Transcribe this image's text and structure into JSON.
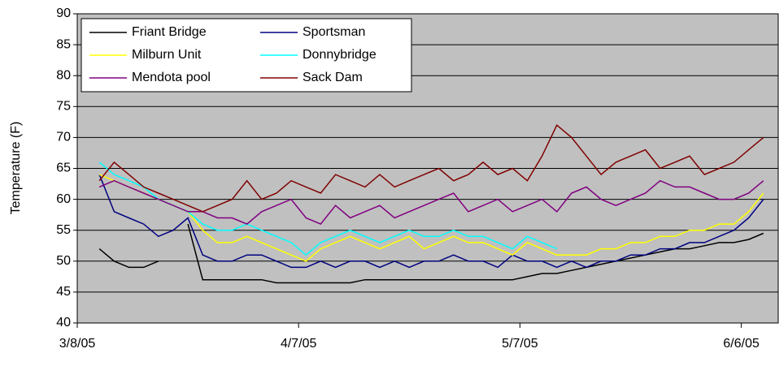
{
  "chart_data": {
    "type": "line",
    "y_label": "Temperature (F)",
    "x": [
      "2005-03-11",
      "2005-03-13",
      "2005-03-15",
      "2005-03-17",
      "2005-03-19",
      "2005-03-21",
      "2005-03-23",
      "2005-03-25",
      "2005-03-27",
      "2005-03-29",
      "2005-03-31",
      "2005-04-02",
      "2005-04-04",
      "2005-04-06",
      "2005-04-08",
      "2005-04-10",
      "2005-04-12",
      "2005-04-14",
      "2005-04-16",
      "2005-04-18",
      "2005-04-20",
      "2005-04-22",
      "2005-04-24",
      "2005-04-26",
      "2005-04-28",
      "2005-04-30",
      "2005-05-02",
      "2005-05-04",
      "2005-05-06",
      "2005-05-08",
      "2005-05-10",
      "2005-05-12",
      "2005-05-14",
      "2005-05-16",
      "2005-05-18",
      "2005-05-20",
      "2005-05-22",
      "2005-05-24",
      "2005-05-26",
      "2005-05-28",
      "2005-05-30",
      "2005-06-01",
      "2005-06-03",
      "2005-06-05",
      "2005-06-07",
      "2005-06-09"
    ],
    "series": [
      {
        "name": "Friant Bridge",
        "color": "#000000",
        "values": [
          52,
          50,
          49,
          49,
          50,
          null,
          56,
          47,
          47,
          47,
          47,
          47,
          46.5,
          46.5,
          46.5,
          46.5,
          46.5,
          46.5,
          47,
          47,
          47,
          47,
          47,
          47,
          47,
          47,
          47,
          47,
          47,
          47.5,
          48,
          48,
          48.5,
          49,
          49.5,
          50,
          50.5,
          51,
          51.5,
          52,
          52,
          52.5,
          53,
          53,
          53.5,
          54.5
        ]
      },
      {
        "name": "Sportsman",
        "color": "#000080",
        "values": [
          64,
          58,
          57,
          56,
          54,
          55,
          57,
          51,
          50,
          50,
          51,
          51,
          50,
          49,
          49,
          50,
          49,
          50,
          50,
          49,
          50,
          49,
          50,
          50,
          51,
          50,
          50,
          49,
          51,
          50,
          50,
          49,
          50,
          49,
          50,
          50,
          51,
          51,
          52,
          52,
          53,
          53,
          54,
          55,
          57,
          60
        ]
      },
      {
        "name": "Milburn Unit",
        "color": "#ffff00",
        "values": [
          64,
          63,
          62,
          61,
          60,
          59,
          58,
          55,
          53,
          53,
          54,
          53,
          52,
          51,
          50,
          52,
          53,
          54,
          53,
          52,
          53,
          54,
          52,
          53,
          54,
          53,
          53,
          52,
          51,
          53,
          52,
          51,
          51,
          51,
          52,
          52,
          53,
          53,
          54,
          54,
          55,
          55,
          56,
          56,
          58,
          61
        ]
      },
      {
        "name": "Donnybridge",
        "color": "#00ffff",
        "values": [
          66,
          64,
          63,
          62,
          60,
          59,
          58,
          56,
          55,
          55,
          56,
          55,
          54,
          53,
          51,
          53,
          54,
          55,
          54,
          53,
          54,
          55,
          54,
          54,
          55,
          54,
          54,
          53,
          52,
          54,
          53,
          52,
          null,
          null,
          null,
          null,
          null,
          null,
          null,
          null,
          null,
          null,
          null,
          null,
          null,
          null
        ]
      },
      {
        "name": "Mendota pool",
        "color": "#800080",
        "values": [
          62,
          63,
          62,
          61,
          60,
          59,
          58,
          58,
          57,
          57,
          56,
          58,
          59,
          60,
          57,
          56,
          59,
          57,
          58,
          59,
          57,
          58,
          59,
          60,
          61,
          58,
          59,
          60,
          58,
          59,
          60,
          58,
          61,
          62,
          60,
          59,
          60,
          61,
          63,
          62,
          62,
          61,
          60,
          60,
          61,
          63
        ]
      },
      {
        "name": "Sack Dam",
        "color": "#800000",
        "values": [
          63,
          66,
          64,
          62,
          61,
          60,
          59,
          58,
          59,
          60,
          63,
          60,
          61,
          63,
          62,
          61,
          64,
          63,
          62,
          64,
          62,
          63,
          64,
          65,
          63,
          64,
          66,
          64,
          65,
          63,
          67,
          72,
          70,
          67,
          64,
          66,
          67,
          68,
          65,
          66,
          67,
          64,
          65,
          66,
          68,
          70
        ]
      }
    ],
    "xlim": [
      "2005-03-08",
      "2005-06-11"
    ],
    "xticks": [
      {
        "value": "2005-03-08",
        "label": "3/8/05"
      },
      {
        "value": "2005-04-07",
        "label": "4/7/05"
      },
      {
        "value": "2005-05-07",
        "label": "5/7/05"
      },
      {
        "value": "2005-06-06",
        "label": "6/6/05"
      }
    ],
    "ylim": [
      40,
      90
    ],
    "yticks": [
      40,
      45,
      50,
      55,
      60,
      65,
      70,
      75,
      80,
      85,
      90
    ],
    "grid": true,
    "legend": "upper left"
  }
}
